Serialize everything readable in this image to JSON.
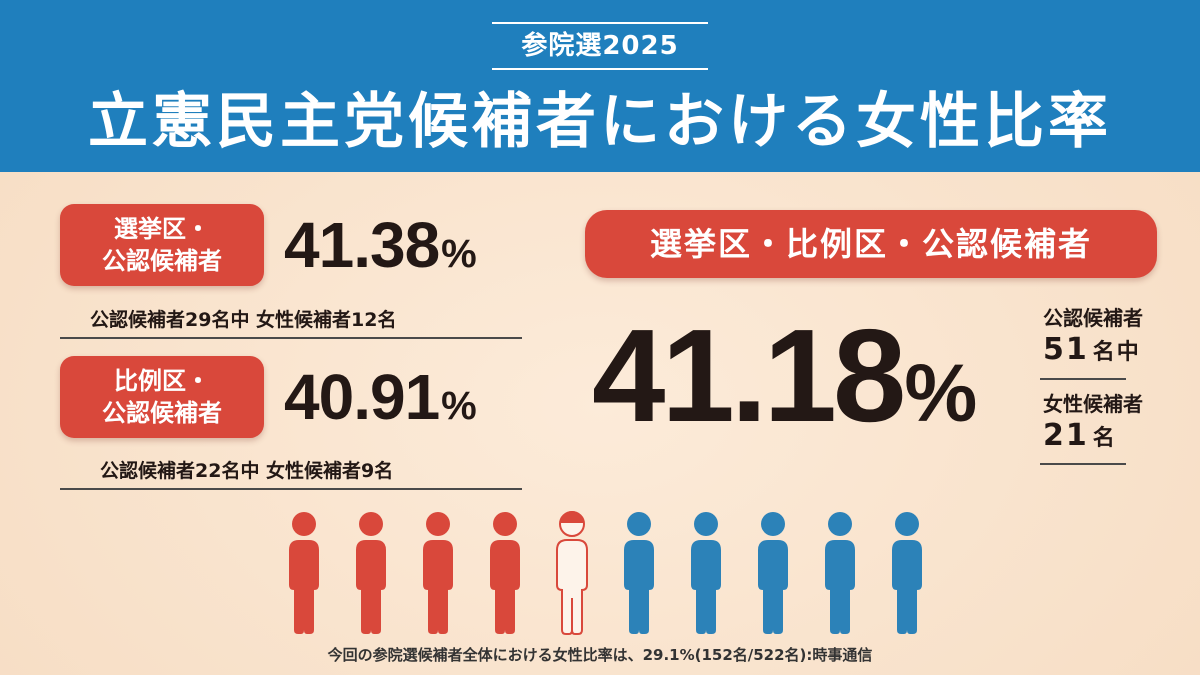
{
  "header": {
    "kicker": "参院選2025",
    "title": "立憲民主党候補者における女性比率"
  },
  "district": {
    "label_line1": "選挙区・",
    "label_line2": "公認候補者",
    "percent": "41.38",
    "percent_sign": "%",
    "note": "公認候補者29名中 女性候補者12名"
  },
  "proportional": {
    "label_line1": "比例区・",
    "label_line2": "公認候補者",
    "percent": "40.91",
    "percent_sign": "%",
    "note": "公認候補者22名中 女性候補者9名"
  },
  "total": {
    "label": "選挙区・比例区・公認候補者",
    "percent": "41.18",
    "percent_sign": "%",
    "candidates_label": "公認候補者",
    "candidates_value": "51",
    "candidates_unit": "名中",
    "women_label": "女性候補者",
    "women_value": "21",
    "women_unit": "名"
  },
  "pictogram": {
    "female_color": "#d9483b",
    "male_color": "#2c82b8",
    "figures": [
      "female",
      "female",
      "female",
      "female",
      "partial",
      "male",
      "male",
      "male",
      "male",
      "male"
    ]
  },
  "footer": "今回の参院選候補者全体における女性比率は、29.1%(152名/522名):時事通信"
}
